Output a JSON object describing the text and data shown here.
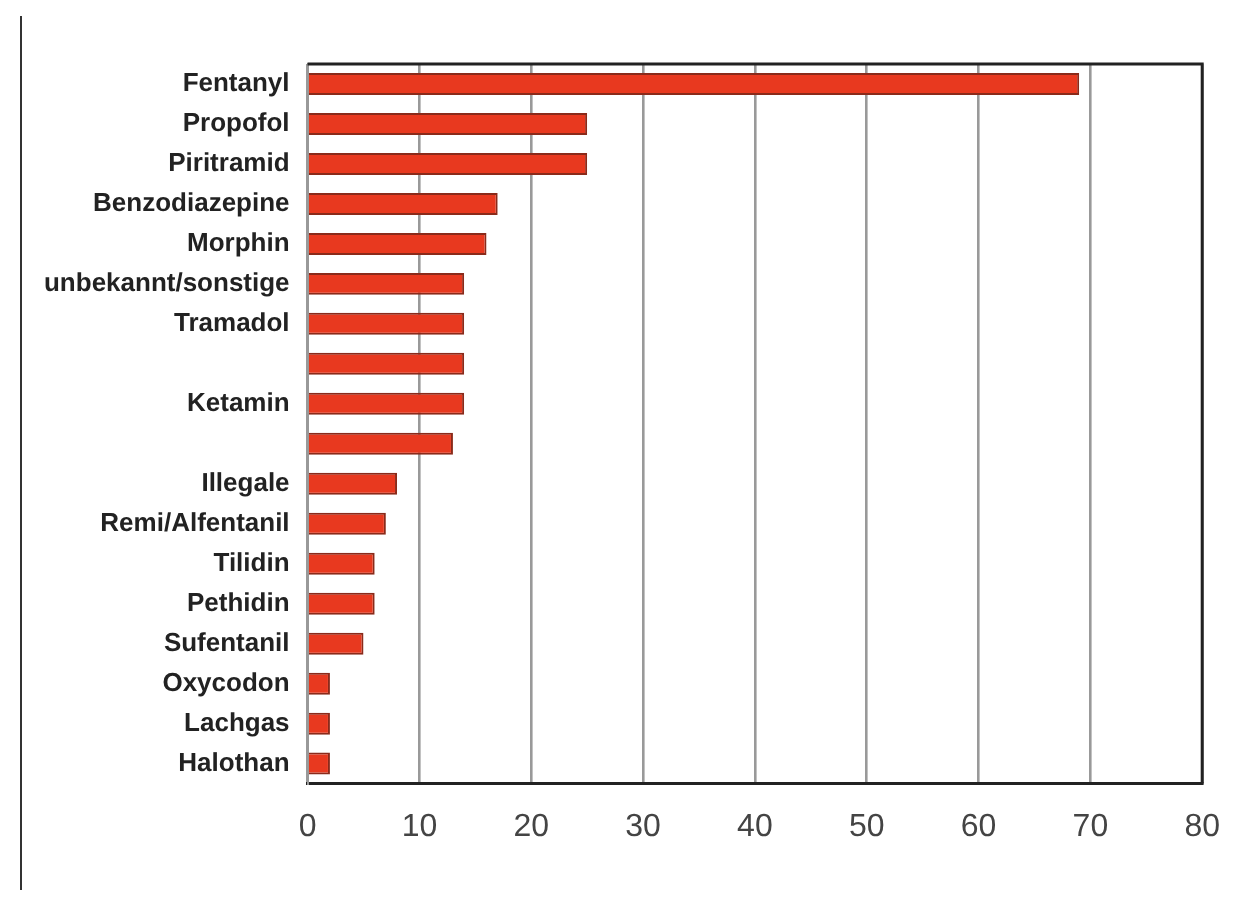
{
  "chart_data": {
    "type": "bar",
    "orientation": "horizontal",
    "categories": [
      "Fentanyl",
      "Propofol",
      "Piritramid",
      "Benzodiazepine",
      "Morphin",
      "unbekannt/sonstige",
      "Tramadol",
      null,
      "Ketamin",
      null,
      "Illegale",
      "Remi/Alfentanil",
      "Tilidin",
      "Pethidin",
      "Sufentanil",
      "Oxycodon",
      "Lachgas",
      "Halothan"
    ],
    "values": [
      69,
      25,
      25,
      17,
      16,
      14,
      14,
      14,
      14,
      13,
      8,
      7,
      6,
      6,
      5,
      2,
      2,
      2
    ],
    "color": "#e8391f",
    "xlim": [
      0,
      80
    ],
    "xticks": [
      0,
      10,
      20,
      30,
      40,
      50,
      60,
      70,
      80
    ],
    "grid": "x",
    "legend": false
  }
}
